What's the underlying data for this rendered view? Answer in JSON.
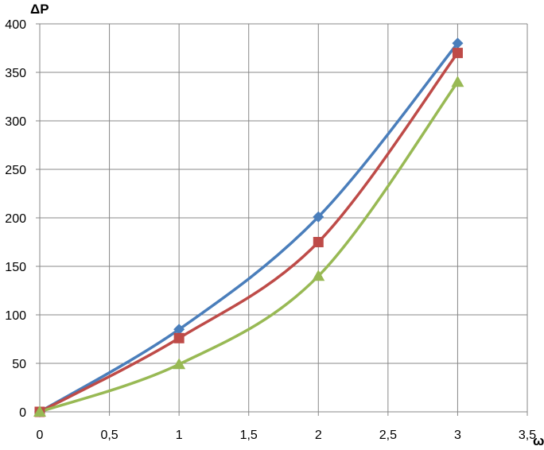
{
  "chart_data": {
    "type": "line",
    "title": "",
    "xlabel": "ω",
    "ylabel": "ΔP",
    "xlim": [
      0,
      3.5
    ],
    "ylim": [
      0,
      400
    ],
    "x_ticks": [
      0,
      0.5,
      1,
      1.5,
      2,
      2.5,
      3,
      3.5
    ],
    "x_tick_labels": [
      "0",
      "0,5",
      "1",
      "1,5",
      "2",
      "2,5",
      "3",
      "3,5"
    ],
    "y_ticks": [
      0,
      50,
      100,
      150,
      200,
      250,
      300,
      350,
      400
    ],
    "y_tick_labels": [
      "0",
      "50",
      "100",
      "150",
      "200",
      "250",
      "300",
      "350",
      "400"
    ],
    "grid": true,
    "legend": false,
    "series": [
      {
        "color": "#4a7ebb",
        "marker": "diamond",
        "x": [
          0,
          1,
          2,
          3
        ],
        "y": [
          0,
          85,
          201,
          380
        ]
      },
      {
        "color": "#be4b48",
        "marker": "square",
        "x": [
          0,
          1,
          2,
          3
        ],
        "y": [
          0,
          76,
          175,
          370
        ]
      },
      {
        "color": "#98b954",
        "marker": "triangle",
        "x": [
          0,
          1,
          2,
          3
        ],
        "y": [
          0,
          49,
          140,
          340
        ]
      }
    ]
  }
}
